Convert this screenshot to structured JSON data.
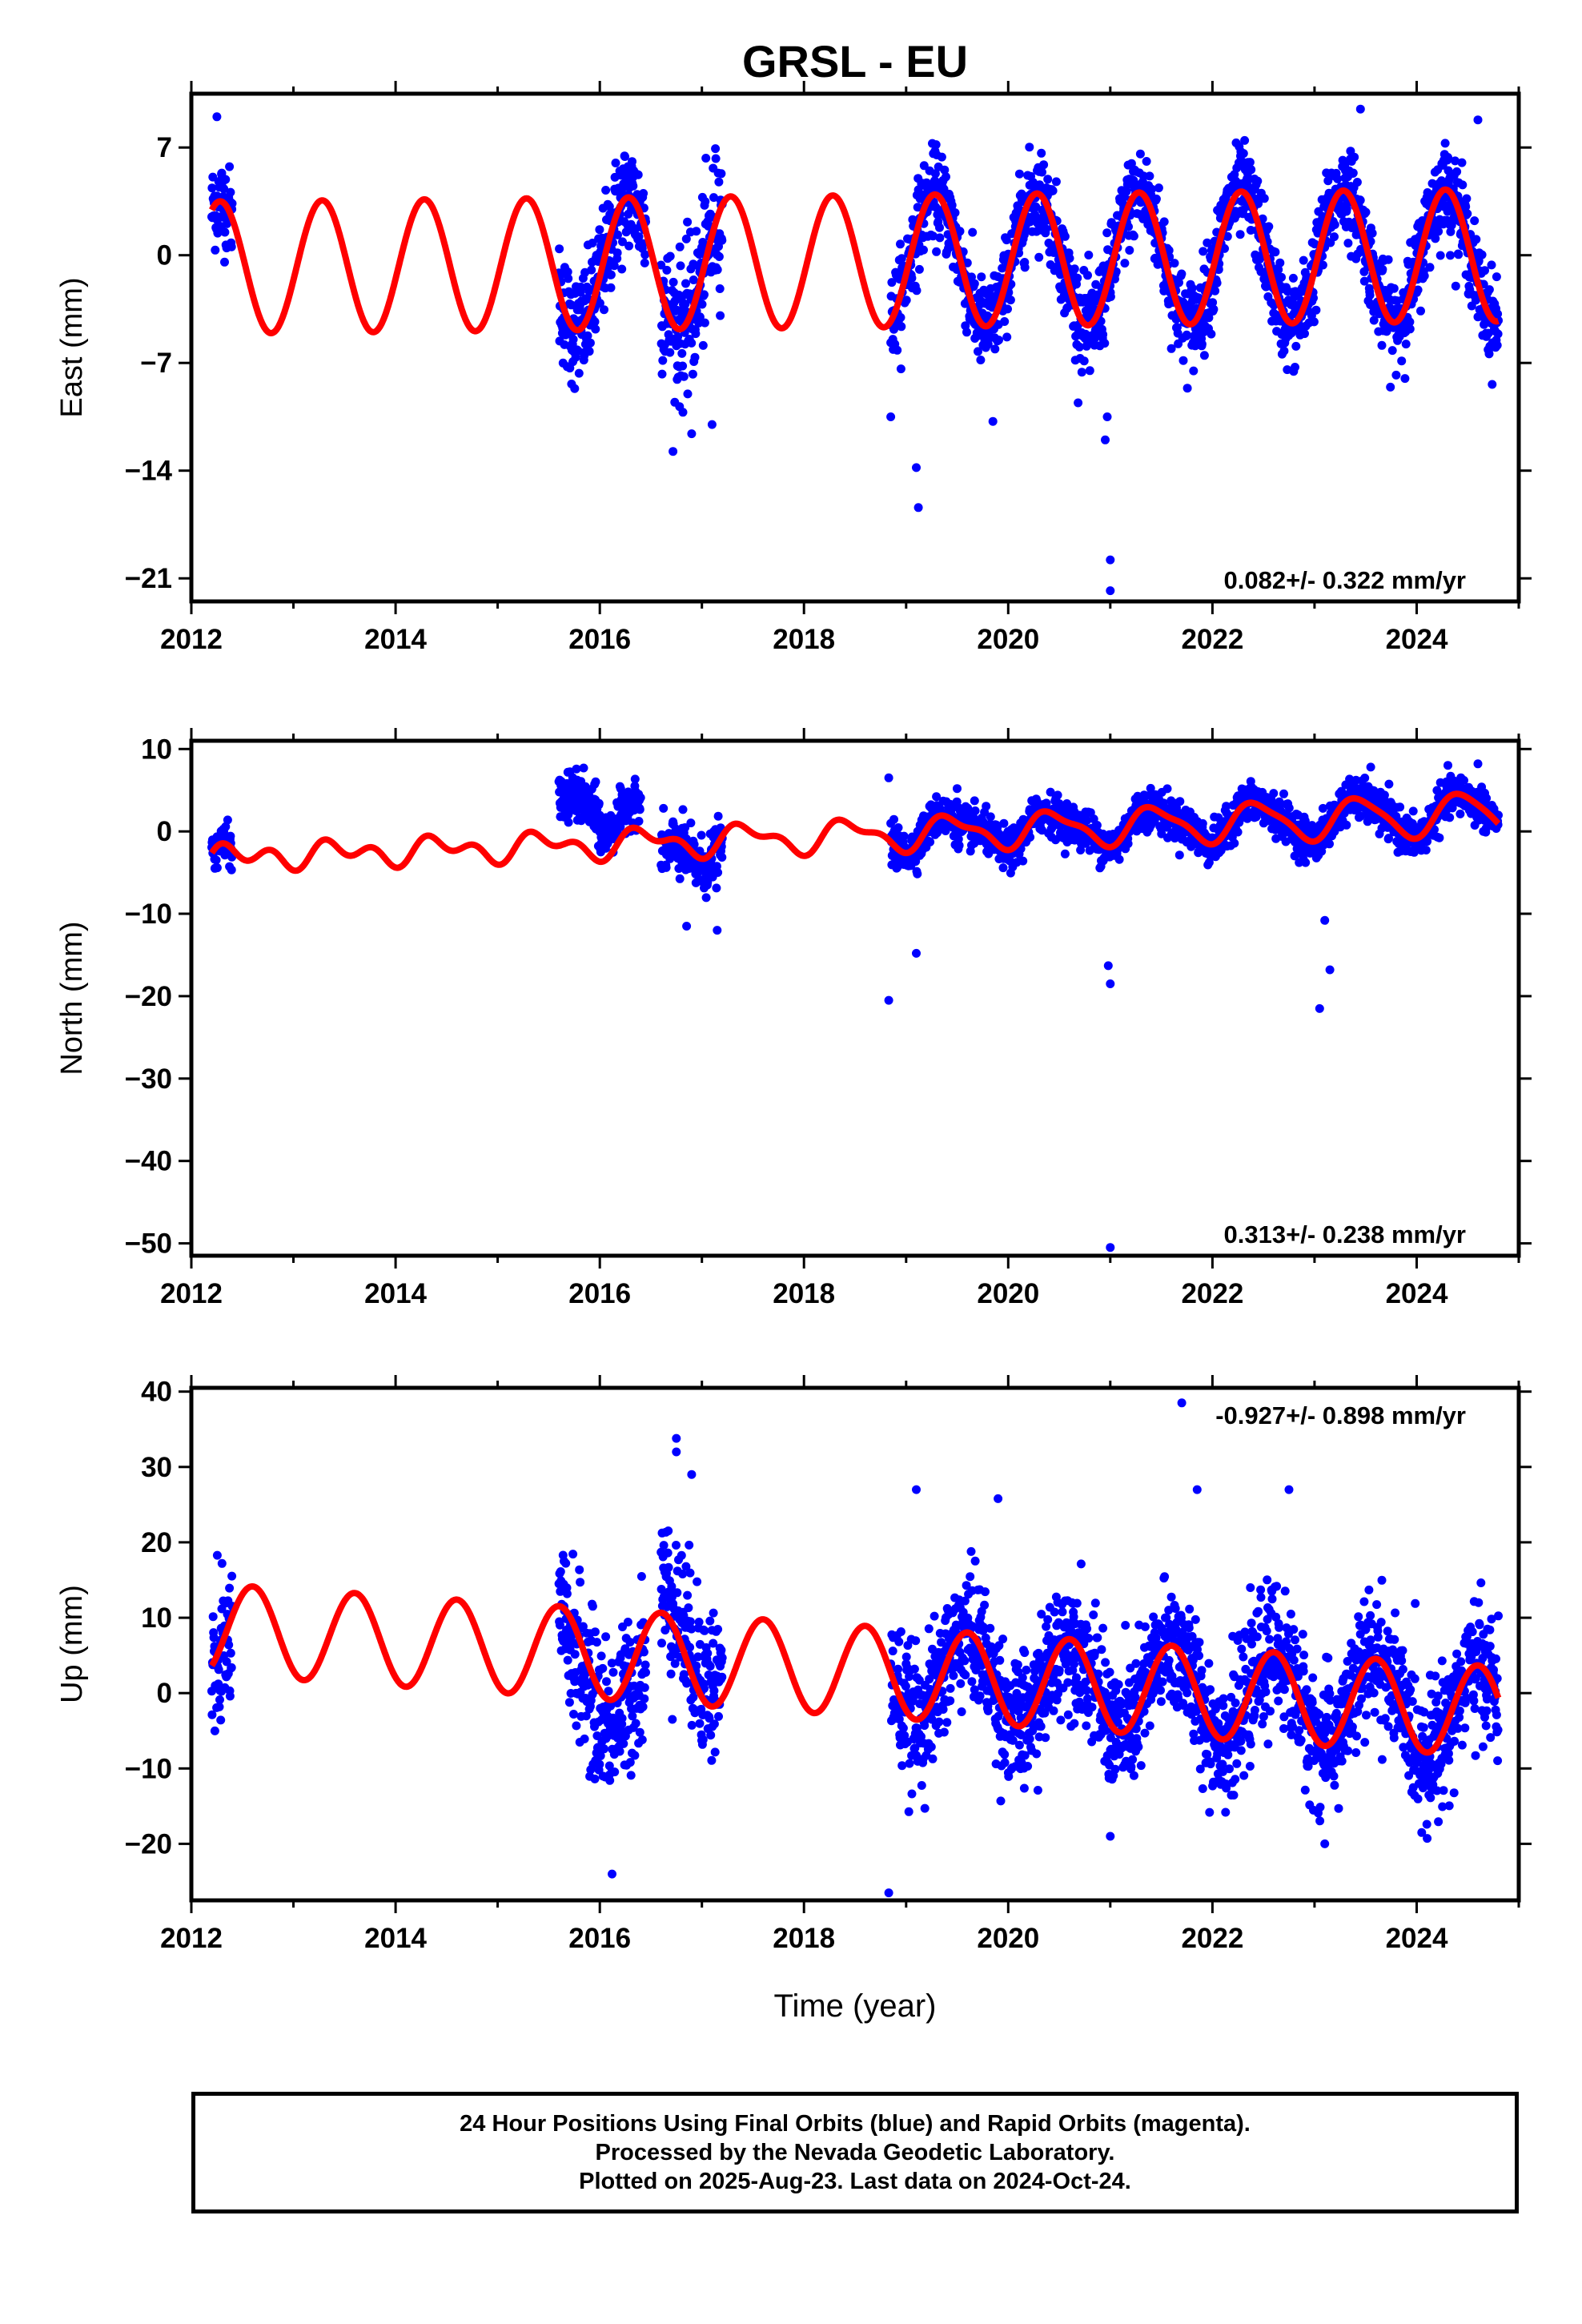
{
  "title": "GRSL - EU",
  "xlabel": "Time (year)",
  "colors": {
    "points": "#0000ff",
    "fit": "#ff0000",
    "frame": "#000000"
  },
  "footer": {
    "line1": "24 Hour Positions Using Final Orbits (blue) and Rapid Orbits (magenta).",
    "line2": "Processed by the Nevada Geodetic Laboratory.",
    "line3": "Plotted on 2025-Aug-23. Last data on 2024-Oct-24."
  },
  "chart_data": [
    {
      "type": "scatter",
      "panel": "east",
      "ylabel": "East (mm)",
      "rate": "0.082+/- 0.322 mm/yr",
      "rate_position": "bottom-right",
      "xlim": [
        2012.0,
        2025.0
      ],
      "ylim": [
        -22.5,
        10.5
      ],
      "xticks": [
        2012,
        2014,
        2016,
        2018,
        2020,
        2022,
        2024
      ],
      "yticks": [
        7,
        0,
        -7,
        -14,
        -21
      ],
      "ytick_labels": [
        "7",
        "0",
        "−7",
        "−14",
        "−21"
      ],
      "grid": false,
      "fit": {
        "x0": 2012.2,
        "x1": 2024.8,
        "mean_start": -0.8,
        "mean_end": 0.0,
        "amp_start": 4.3,
        "amp_end": 4.3,
        "semi_start": 0.0,
        "semi_end": 0.0,
        "phase": -0.2
      },
      "segments": [
        {
          "start": 2012.2,
          "end": 2012.4,
          "noise": 1.7
        },
        {
          "start": 2015.6,
          "end": 2016.45,
          "noise": 2.2
        },
        {
          "start": 2016.6,
          "end": 2017.2,
          "noise": 2.8
        },
        {
          "start": 2018.85,
          "end": 2024.8,
          "noise": 1.7
        }
      ],
      "outliers": [
        {
          "x": 2019.1,
          "y": -13.8
        },
        {
          "x": 2019.12,
          "y": -16.4
        },
        {
          "x": 2020.95,
          "y": -12.0
        },
        {
          "x": 2020.97,
          "y": -10.5
        },
        {
          "x": 2021.0,
          "y": -19.8
        },
        {
          "x": 2021.0,
          "y": -21.8
        },
        {
          "x": 2012.25,
          "y": 9.0
        },
        {
          "x": 2023.45,
          "y": 9.5
        },
        {
          "x": 2016.9,
          "y": -11.6
        },
        {
          "x": 2017.1,
          "y": -11.0
        },
        {
          "x": 2018.85,
          "y": -10.5
        },
        {
          "x": 2019.85,
          "y": -10.8
        },
        {
          "x": 2024.6,
          "y": 8.8
        },
        {
          "x": 2020.8,
          "y": -7.5
        }
      ]
    },
    {
      "type": "scatter",
      "panel": "north",
      "ylabel": "North (mm)",
      "rate": "0.313+/- 0.238 mm/yr",
      "rate_position": "bottom-right",
      "xlim": [
        2012.0,
        2025.0
      ],
      "ylim": [
        -51.5,
        11.0
      ],
      "xticks": [
        2012,
        2014,
        2016,
        2018,
        2020,
        2022,
        2024
      ],
      "yticks": [
        10,
        0,
        -10,
        -20,
        -30,
        -40,
        -50
      ],
      "ytick_labels": [
        "10",
        "0",
        "−10",
        "−20",
        "−30",
        "−40",
        "−50"
      ],
      "grid": false,
      "fit": {
        "x0": 2012.2,
        "x1": 2024.8,
        "mean_start": -3.2,
        "mean_end": 2.2,
        "amp_start": 0.8,
        "amp_end": 2.6,
        "semi_start": 1.2,
        "semi_end": 0.4,
        "phase": -1.2
      },
      "segments": [
        {
          "start": 2012.2,
          "end": 2012.4,
          "noise": 1.3
        },
        {
          "start": 2015.6,
          "end": 2016.0,
          "noise": 1.8,
          "offset": 5.5
        },
        {
          "start": 2016.0,
          "end": 2016.4,
          "noise": 1.5,
          "offset": 3.0
        },
        {
          "start": 2016.6,
          "end": 2017.2,
          "noise": 2.0,
          "offset": -1.0
        },
        {
          "start": 2018.85,
          "end": 2024.8,
          "noise": 1.4
        }
      ],
      "outliers": [
        {
          "x": 2018.83,
          "y": -20.5
        },
        {
          "x": 2018.83,
          "y": 6.5
        },
        {
          "x": 2019.1,
          "y": -14.8
        },
        {
          "x": 2020.98,
          "y": -16.3
        },
        {
          "x": 2021.0,
          "y": -18.5
        },
        {
          "x": 2021.0,
          "y": -50.5
        },
        {
          "x": 2023.1,
          "y": -10.8
        },
        {
          "x": 2023.15,
          "y": -16.8
        },
        {
          "x": 2023.05,
          "y": -21.5
        },
        {
          "x": 2016.85,
          "y": -11.5
        },
        {
          "x": 2017.15,
          "y": -12.0
        },
        {
          "x": 2019.5,
          "y": 5.2
        },
        {
          "x": 2024.6,
          "y": 8.2
        },
        {
          "x": 2023.55,
          "y": 7.8
        }
      ]
    },
    {
      "type": "scatter",
      "panel": "up",
      "ylabel": "Up (mm)",
      "rate": "-0.927+/- 0.898 mm/yr",
      "rate_position": "top-right",
      "xlim": [
        2012.0,
        2025.0
      ],
      "ylim": [
        -27.5,
        40.5
      ],
      "xticks": [
        2012,
        2014,
        2016,
        2018,
        2020,
        2022,
        2024
      ],
      "yticks": [
        40,
        30,
        20,
        10,
        0,
        -10,
        -20
      ],
      "ytick_labels": [
        "40",
        "30",
        "20",
        "10",
        "0",
        "−10",
        "−20"
      ],
      "grid": false,
      "fit": {
        "x0": 2012.2,
        "x1": 2024.8,
        "mean_start": 8.5,
        "mean_end": -2.5,
        "amp_start": 6.0,
        "amp_end": 6.0,
        "semi_start": 0.0,
        "semi_end": 0.0,
        "phase": -2.2
      },
      "segments": [
        {
          "start": 2012.2,
          "end": 2012.4,
          "noise": 5.0,
          "offset": -2.0
        },
        {
          "start": 2015.6,
          "end": 2016.45,
          "noise": 6.0,
          "offset": -3.0
        },
        {
          "start": 2016.6,
          "end": 2017.2,
          "noise": 6.0,
          "offset": 3.0
        },
        {
          "start": 2018.85,
          "end": 2024.8,
          "noise": 5.0
        }
      ],
      "outliers": [
        {
          "x": 2016.75,
          "y": 33.8
        },
        {
          "x": 2016.75,
          "y": 32.0
        },
        {
          "x": 2016.9,
          "y": 29.0
        },
        {
          "x": 2016.12,
          "y": -24.0
        },
        {
          "x": 2018.83,
          "y": -26.5
        },
        {
          "x": 2021.7,
          "y": 38.5
        },
        {
          "x": 2019.9,
          "y": 25.8
        },
        {
          "x": 2019.1,
          "y": 27.0
        },
        {
          "x": 2022.75,
          "y": 27.0
        },
        {
          "x": 2021.85,
          "y": 27.0
        },
        {
          "x": 2023.1,
          "y": -20.0
        },
        {
          "x": 2024.05,
          "y": -18.5
        },
        {
          "x": 2021.0,
          "y": -19.0
        },
        {
          "x": 2012.3,
          "y": 17.2
        },
        {
          "x": 2015.65,
          "y": 17.5
        }
      ]
    }
  ]
}
